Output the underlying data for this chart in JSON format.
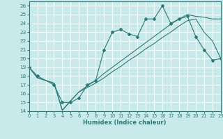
{
  "xlabel": "Humidex (Indice chaleur)",
  "bg_color": "#c8eaea",
  "grid_color": "#ffffff",
  "line_color": "#2a7a7a",
  "xlim": [
    0,
    23
  ],
  "ylim": [
    14,
    26.5
  ],
  "xticks": [
    0,
    1,
    2,
    3,
    4,
    5,
    6,
    7,
    8,
    9,
    10,
    11,
    12,
    13,
    14,
    15,
    16,
    17,
    18,
    19,
    20,
    21,
    22,
    23
  ],
  "yticks": [
    14,
    15,
    16,
    17,
    18,
    19,
    20,
    21,
    22,
    23,
    24,
    25,
    26
  ],
  "line1_x": [
    0,
    1,
    3,
    4,
    5,
    6,
    7,
    8,
    9,
    10,
    11,
    12,
    13,
    14,
    15,
    16,
    17,
    18,
    19,
    20,
    21,
    22,
    23
  ],
  "line1_y": [
    19,
    18,
    17,
    15,
    15,
    15.5,
    17,
    17.5,
    21,
    23,
    23.3,
    22.8,
    22.5,
    24.5,
    24.5,
    26,
    24,
    24.5,
    24.8,
    22.5,
    21,
    19.8,
    20
  ],
  "line2_x": [
    0,
    1,
    3,
    4,
    5,
    6,
    7,
    8,
    9,
    10,
    11,
    12,
    13,
    14,
    15,
    16,
    17,
    18,
    19,
    20,
    21,
    22,
    23
  ],
  "line2_y": [
    19,
    17.8,
    17.2,
    14.1,
    15.2,
    16.2,
    16.7,
    17.2,
    17.8,
    18.5,
    19.1,
    19.8,
    20.4,
    21.1,
    21.7,
    22.4,
    23.0,
    23.7,
    24.3,
    24.5,
    23.0,
    22.0,
    20.0
  ],
  "line3_x": [
    0,
    1,
    3,
    4,
    5,
    6,
    7,
    8,
    9,
    10,
    11,
    12,
    13,
    14,
    15,
    16,
    17,
    18,
    19,
    20,
    21,
    22,
    23
  ],
  "line3_y": [
    19,
    17.8,
    17.2,
    14.1,
    15.2,
    16.2,
    16.9,
    17.5,
    18.3,
    19.0,
    19.7,
    20.4,
    21.1,
    21.8,
    22.5,
    23.2,
    23.9,
    24.5,
    25.0,
    24.8,
    24.7,
    24.5,
    24.5
  ]
}
